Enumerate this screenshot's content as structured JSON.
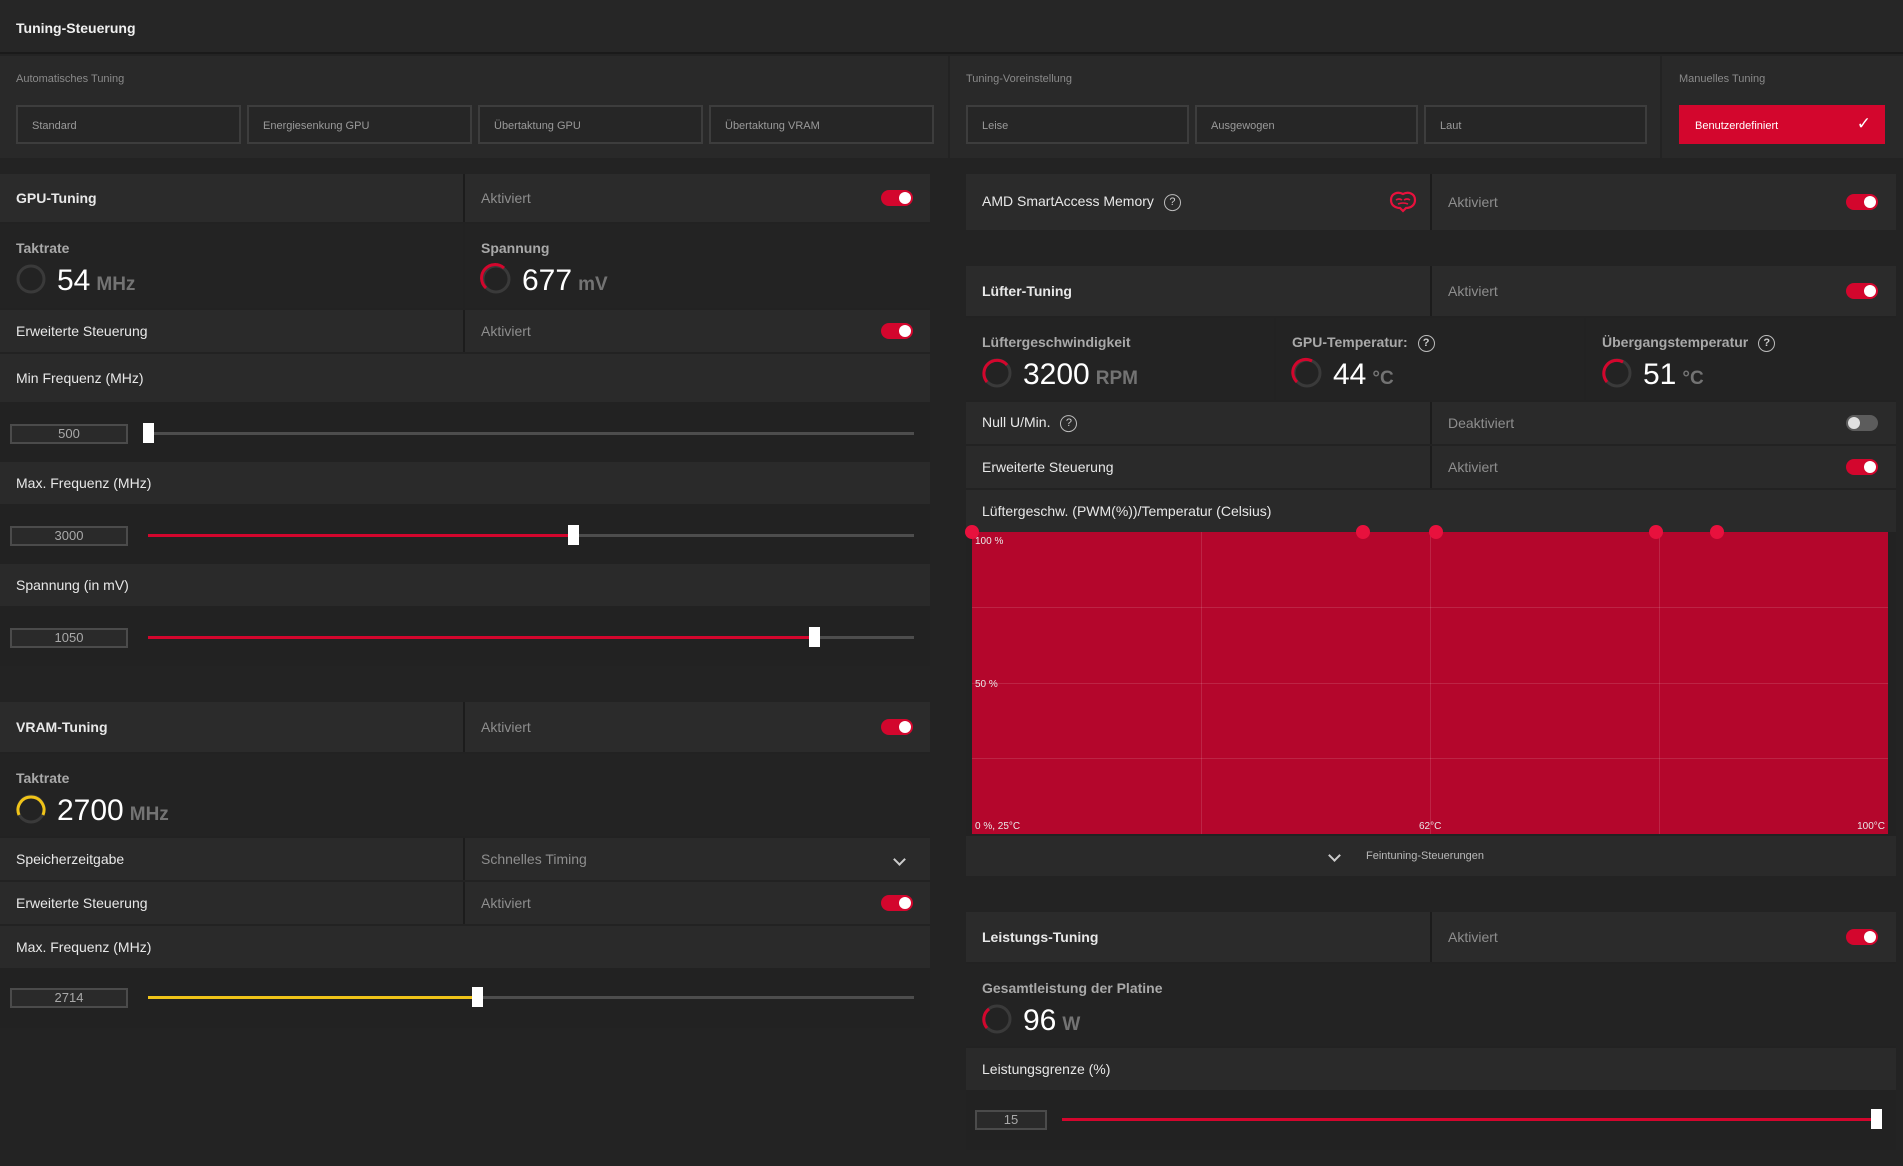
{
  "header": {
    "title": "Tuning-Steuerung"
  },
  "auto_tuning": {
    "label": "Automatisches Tuning",
    "options": [
      "Standard",
      "Energiesenkung GPU",
      "Übertaktung GPU",
      "Übertaktung VRAM"
    ]
  },
  "preset": {
    "label": "Tuning-Voreinstellung",
    "options": [
      "Leise",
      "Ausgewogen",
      "Laut"
    ]
  },
  "manual": {
    "label": "Manuelles Tuning",
    "option": "Benutzerdefiniert"
  },
  "gpu_tuning": {
    "title": "GPU-Tuning",
    "status": "Aktiviert",
    "enabled": true,
    "clock": {
      "label": "Taktrate",
      "value": "54",
      "unit": "MHz"
    },
    "voltage": {
      "label": "Spannung",
      "value": "677",
      "unit": "mV"
    },
    "advanced": {
      "label": "Erweiterte Steuerung",
      "status": "Aktiviert",
      "enabled": true
    },
    "min_freq": {
      "label": "Min Frequenz (MHz)",
      "value": "500",
      "fraction": 0.0
    },
    "max_freq": {
      "label": "Max. Frequenz (MHz)",
      "value": "3000",
      "fraction": 0.555
    },
    "voltage_limit": {
      "label": "Spannung (in mV)",
      "value": "1050",
      "fraction": 0.87
    }
  },
  "vram_tuning": {
    "title": "VRAM-Tuning",
    "status": "Aktiviert",
    "enabled": true,
    "clock": {
      "label": "Taktrate",
      "value": "2700",
      "unit": "MHz"
    },
    "timing": {
      "label": "Speicherzeitgabe",
      "value": "Schnelles Timing"
    },
    "advanced": {
      "label": "Erweiterte Steuerung",
      "status": "Aktiviert",
      "enabled": true
    },
    "max_freq": {
      "label": "Max. Frequenz (MHz)",
      "value": "2714",
      "fraction": 0.43
    }
  },
  "sam": {
    "label": "AMD SmartAccess Memory",
    "status": "Aktiviert",
    "enabled": true
  },
  "fan_tuning": {
    "title": "Lüfter-Tuning",
    "status": "Aktiviert",
    "enabled": true,
    "speed": {
      "label": "Lüftergeschwindigkeit",
      "value": "3200",
      "unit": "RPM"
    },
    "gpu_temp": {
      "label": "GPU-Temperatur:",
      "value": "44",
      "unit": "°C"
    },
    "junction_temp": {
      "label": "Übergangstemperatur",
      "value": "51",
      "unit": "°C"
    },
    "zero_rpm": {
      "label": "Null U/Min.",
      "status": "Deaktiviert",
      "enabled": false
    },
    "advanced": {
      "label": "Erweiterte Steuerung",
      "status": "Aktiviert",
      "enabled": true
    },
    "curve_title": "Lüftergeschw. (PWM(%))/Temperatur (Celsius)",
    "fine_tuning": "Feintuning-Steuerungen"
  },
  "chart_data": {
    "type": "area",
    "title": "Lüftergeschw. (PWM(%))/Temperatur (Celsius)",
    "y_tick_labels": [
      "100 %",
      "50 %",
      "0 %, 25°C"
    ],
    "x_tick_labels": [
      "62°C",
      "100°C"
    ],
    "xlim": [
      25,
      100
    ],
    "ylim": [
      0,
      100
    ],
    "points": [
      {
        "x": 25,
        "y": 100
      },
      {
        "x": 57,
        "y": 100
      },
      {
        "x": 63,
        "y": 100
      },
      {
        "x": 81,
        "y": 100
      },
      {
        "x": 86,
        "y": 100
      }
    ],
    "fill_color": "#b4062c",
    "point_color": "#e8113d"
  },
  "power_tuning": {
    "title": "Leistungs-Tuning",
    "status": "Aktiviert",
    "enabled": true,
    "board_power": {
      "label": "Gesamtleistung der Platine",
      "value": "96",
      "unit": "W"
    },
    "limit": {
      "label": "Leistungsgrenze (%)",
      "value": "15",
      "fraction": 1.0
    }
  },
  "colors": {
    "accent": "#d3062d",
    "vram_accent": "#f0c419"
  }
}
